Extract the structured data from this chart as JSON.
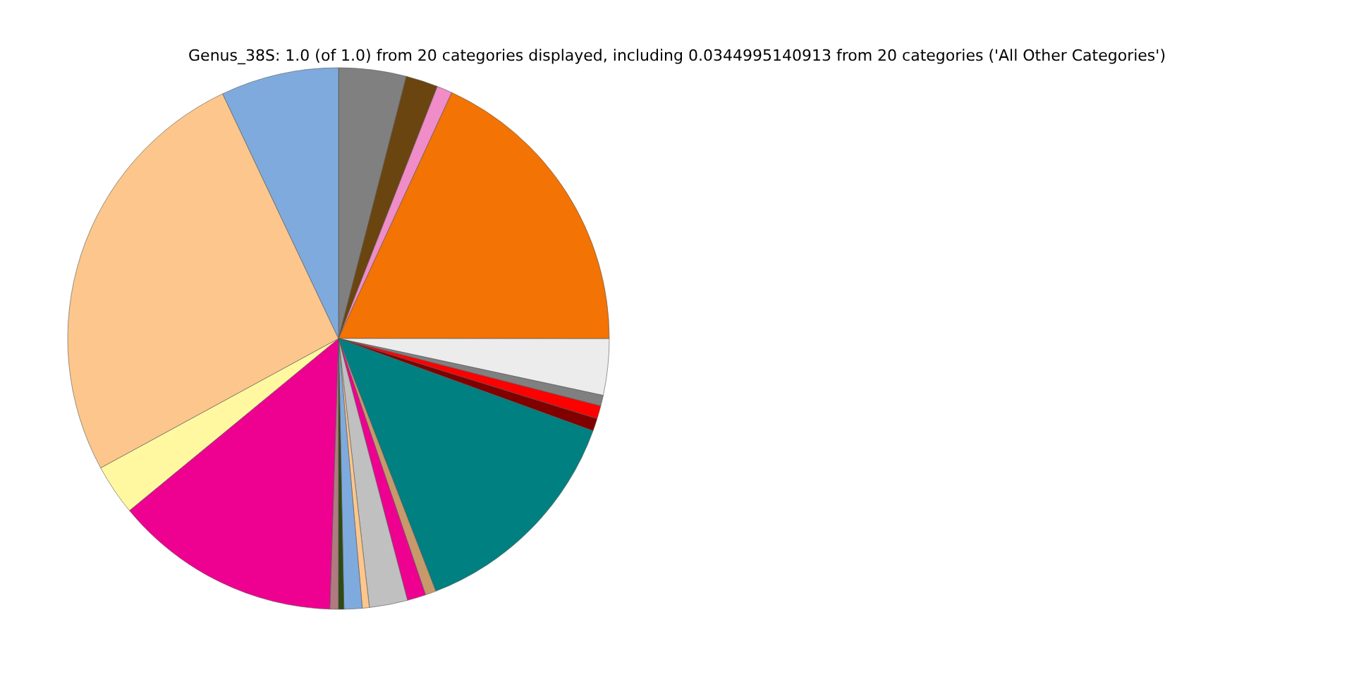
{
  "chart_data": {
    "type": "pie",
    "title": "Genus_38S: 1.0 (of 1.0) from 20 categories displayed, including 0.0344995140913 from 20 categories ('All Other Categories')",
    "categories": [
      null,
      null,
      null,
      null,
      null,
      null,
      null,
      null,
      null,
      null,
      null,
      null,
      null,
      null,
      null,
      null,
      null,
      null,
      null,
      null
    ],
    "values": [
      4.03,
      1.92,
      0.92,
      18.14,
      3.36,
      0.64,
      0.78,
      0.75,
      13.61,
      0.64,
      1.11,
      2.28,
      0.42,
      1.08,
      0.33,
      0.5,
      13.53,
      3.03,
      25.89,
      7.04
    ],
    "colors": [
      "#808080",
      "#6b4510",
      "#f08cc8",
      "#f37304",
      "#ececec",
      "#808080",
      "#ff0000",
      "#800000",
      "#008080",
      "#c8996b",
      "#ee0090",
      "#c0c0c0",
      "#fcc68c",
      "#7faadd",
      "#2e4a10",
      "#b07a80",
      "#ee0090",
      "#fff8a0",
      "#fcc68c",
      "#7faadd"
    ],
    "legend": false
  }
}
